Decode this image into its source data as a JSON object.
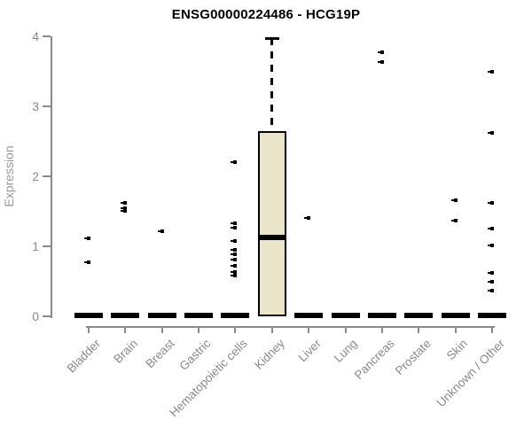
{
  "colors": {
    "title": "#000000",
    "axis": "#8a8a8a",
    "tick_label": "#8a8a8a",
    "axis_title": "#9a9a9a",
    "box_fill": "#EBE6CA",
    "box_border": "#000000",
    "point": "#000000",
    "background": "#ffffff"
  },
  "chart_data": {
    "type": "boxplot",
    "title": "ENSG00000224486 - HCG19P",
    "xlabel": "",
    "ylabel": "Expression",
    "ylim": [
      0,
      4
    ],
    "yticks": [
      0,
      1,
      2,
      3,
      4
    ],
    "grid": false,
    "legend": false,
    "categories": [
      "Bladder",
      "Brain",
      "Breast",
      "Gastric",
      "Hematopoietic cells",
      "Kidney",
      "Liver",
      "Lung",
      "Pancreas",
      "Prostate",
      "Skin",
      "Unknown / Other"
    ],
    "boxes": [
      {
        "category": "Bladder",
        "q1": 0,
        "median": 0,
        "q3": 0,
        "whisker_low": 0,
        "whisker_high": 0,
        "outliers": [
          1.11,
          0.77
        ]
      },
      {
        "category": "Brain",
        "q1": 0,
        "median": 0,
        "q3": 0,
        "whisker_low": 0,
        "whisker_high": 0,
        "outliers": [
          1.62,
          1.55,
          1.51
        ]
      },
      {
        "category": "Breast",
        "q1": 0,
        "median": 0,
        "q3": 0,
        "whisker_low": 0,
        "whisker_high": 0,
        "outliers": [
          1.21
        ]
      },
      {
        "category": "Gastric",
        "q1": 0,
        "median": 0,
        "q3": 0,
        "whisker_low": 0,
        "whisker_high": 0,
        "outliers": []
      },
      {
        "category": "Hematopoietic cells",
        "q1": 0,
        "median": 0,
        "q3": 0,
        "whisker_low": 0,
        "whisker_high": 0,
        "outliers": [
          2.2,
          1.33,
          1.26,
          1.07,
          0.95,
          0.88,
          0.81,
          0.72,
          0.63,
          0.58
        ]
      },
      {
        "category": "Kidney",
        "q1": 0,
        "median": 1.13,
        "q3": 2.64,
        "whisker_low": 0,
        "whisker_high": 3.97,
        "outliers": []
      },
      {
        "category": "Liver",
        "q1": 0,
        "median": 0,
        "q3": 0,
        "whisker_low": 0,
        "whisker_high": 0,
        "outliers": [
          1.4
        ]
      },
      {
        "category": "Lung",
        "q1": 0,
        "median": 0,
        "q3": 0,
        "whisker_low": 0,
        "whisker_high": 0,
        "outliers": []
      },
      {
        "category": "Pancreas",
        "q1": 0,
        "median": 0,
        "q3": 0,
        "whisker_low": 0,
        "whisker_high": 0,
        "outliers": [
          3.77,
          3.63
        ]
      },
      {
        "category": "Prostate",
        "q1": 0,
        "median": 0,
        "q3": 0,
        "whisker_low": 0,
        "whisker_high": 0,
        "outliers": []
      },
      {
        "category": "Skin",
        "q1": 0,
        "median": 0,
        "q3": 0,
        "whisker_low": 0,
        "whisker_high": 0,
        "outliers": [
          1.66,
          1.37
        ]
      },
      {
        "category": "Unknown / Other",
        "q1": 0,
        "median": 0,
        "q3": 0,
        "whisker_low": 0,
        "whisker_high": 0,
        "outliers": [
          3.49,
          2.62,
          1.62,
          1.25,
          1.01,
          0.62,
          0.49,
          0.37
        ]
      }
    ]
  }
}
